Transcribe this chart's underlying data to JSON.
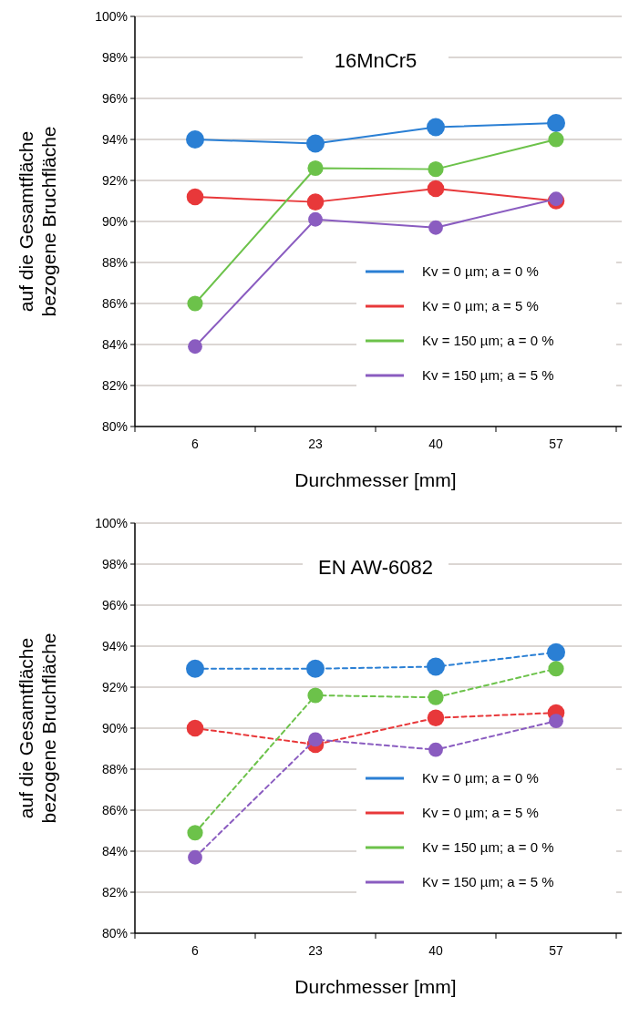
{
  "chart_data": [
    {
      "type": "line",
      "title": "16MnCr5",
      "xlabel": "Durchmesser [mm]",
      "ylabel": "auf die Gesamtfläche\nbezogene Bruchfläche",
      "categories": [
        "6",
        "23",
        "40",
        "57"
      ],
      "series": [
        {
          "name": "Kv = 0 µm; a = 0 %",
          "color": "#2a7fd4",
          "values": [
            94.0,
            93.8,
            94.6,
            94.8
          ]
        },
        {
          "name": "Kv = 0 µm; a = 5 %",
          "color": "#e8383a",
          "values": [
            91.2,
            90.95,
            91.6,
            91.0
          ]
        },
        {
          "name": "Kv = 150 µm; a = 0 %",
          "color": "#6cc24a",
          "values": [
            86.0,
            92.6,
            92.55,
            94.0
          ]
        },
        {
          "name": "Kv = 150 µm; a = 5 %",
          "color": "#8a5cc0",
          "values": [
            83.9,
            90.1,
            89.7,
            91.1
          ]
        }
      ],
      "ylim": [
        80,
        100
      ],
      "yticks": [
        {
          "value": 80,
          "label": "80%"
        },
        {
          "value": 82,
          "label": "82%"
        },
        {
          "value": 84,
          "label": "84%"
        },
        {
          "value": 86,
          "label": "86%"
        },
        {
          "value": 88,
          "label": "88%"
        },
        {
          "value": 90,
          "label": "90%"
        },
        {
          "value": 92,
          "label": "92%"
        },
        {
          "value": 94,
          "label": "94%"
        },
        {
          "value": 96,
          "label": "96%"
        },
        {
          "value": 98,
          "label": "98%"
        },
        {
          "value": 100,
          "label": "100%"
        }
      ],
      "grid": "y",
      "legend": "bottom right",
      "marker": "circle",
      "line_style": "solid"
    },
    {
      "type": "line",
      "title": "EN AW-6082",
      "xlabel": "Durchmesser [mm]",
      "ylabel": "auf die Gesamtfläche\nbezogene Bruchfläche",
      "categories": [
        "6",
        "23",
        "40",
        "57"
      ],
      "series": [
        {
          "name": "Kv = 0 µm; a = 0 %",
          "color": "#2a7fd4",
          "values": [
            92.9,
            92.9,
            93.0,
            93.7
          ]
        },
        {
          "name": "Kv = 0 µm; a = 5 %",
          "color": "#e8383a",
          "values": [
            90.0,
            89.2,
            90.5,
            90.75
          ]
        },
        {
          "name": "Kv = 150 µm; a = 0 %",
          "color": "#6cc24a",
          "values": [
            84.9,
            91.6,
            91.5,
            92.9
          ]
        },
        {
          "name": "Kv = 150 µm; a = 5 %",
          "color": "#8a5cc0",
          "values": [
            83.7,
            89.45,
            88.95,
            90.35
          ]
        }
      ],
      "ylim": [
        80,
        100
      ],
      "yticks": [
        {
          "value": 80,
          "label": "80%"
        },
        {
          "value": 82,
          "label": "82%"
        },
        {
          "value": 84,
          "label": "84%"
        },
        {
          "value": 86,
          "label": "86%"
        },
        {
          "value": 88,
          "label": "88%"
        },
        {
          "value": 90,
          "label": "90%"
        },
        {
          "value": 92,
          "label": "92%"
        },
        {
          "value": 94,
          "label": "94%"
        },
        {
          "value": 96,
          "label": "96%"
        },
        {
          "value": 98,
          "label": "98%"
        },
        {
          "value": 100,
          "label": "100%"
        }
      ],
      "grid": "y",
      "legend": "bottom right",
      "marker": "circle",
      "line_style": "dashed"
    }
  ]
}
